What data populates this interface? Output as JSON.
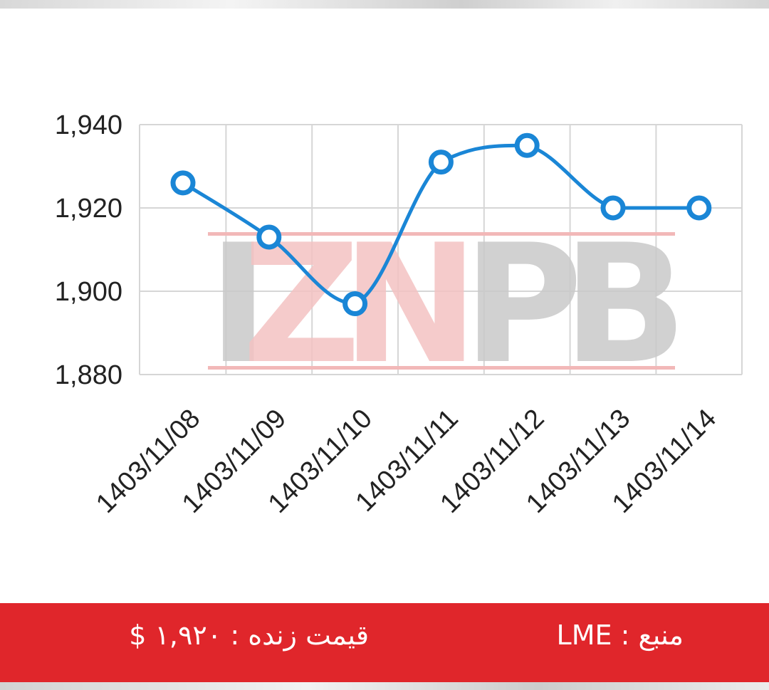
{
  "chart_data": {
    "type": "line",
    "title": "",
    "xlabel": "",
    "ylabel": "",
    "categories": [
      "1403/11/08",
      "1403/11/09",
      "1403/11/10",
      "1403/11/11",
      "1403/11/12",
      "1403/11/13",
      "1403/11/14"
    ],
    "values": [
      1926,
      1913,
      1897,
      1931,
      1935,
      1920,
      1920
    ],
    "ylim": [
      1880,
      1940
    ],
    "yticks": [
      1880,
      1900,
      1920,
      1940
    ],
    "ytick_labels": [
      "1,880",
      "1,900",
      "1,920",
      "1,940"
    ],
    "grid": true,
    "line_color": "#1a86d6",
    "smooth": true
  },
  "watermark": {
    "text": "IZNPB"
  },
  "footer": {
    "price_label": "قیمت زنده : ۱,۹۲۰ $",
    "source_label": "منبع : LME",
    "background_color": "#e0262b"
  }
}
